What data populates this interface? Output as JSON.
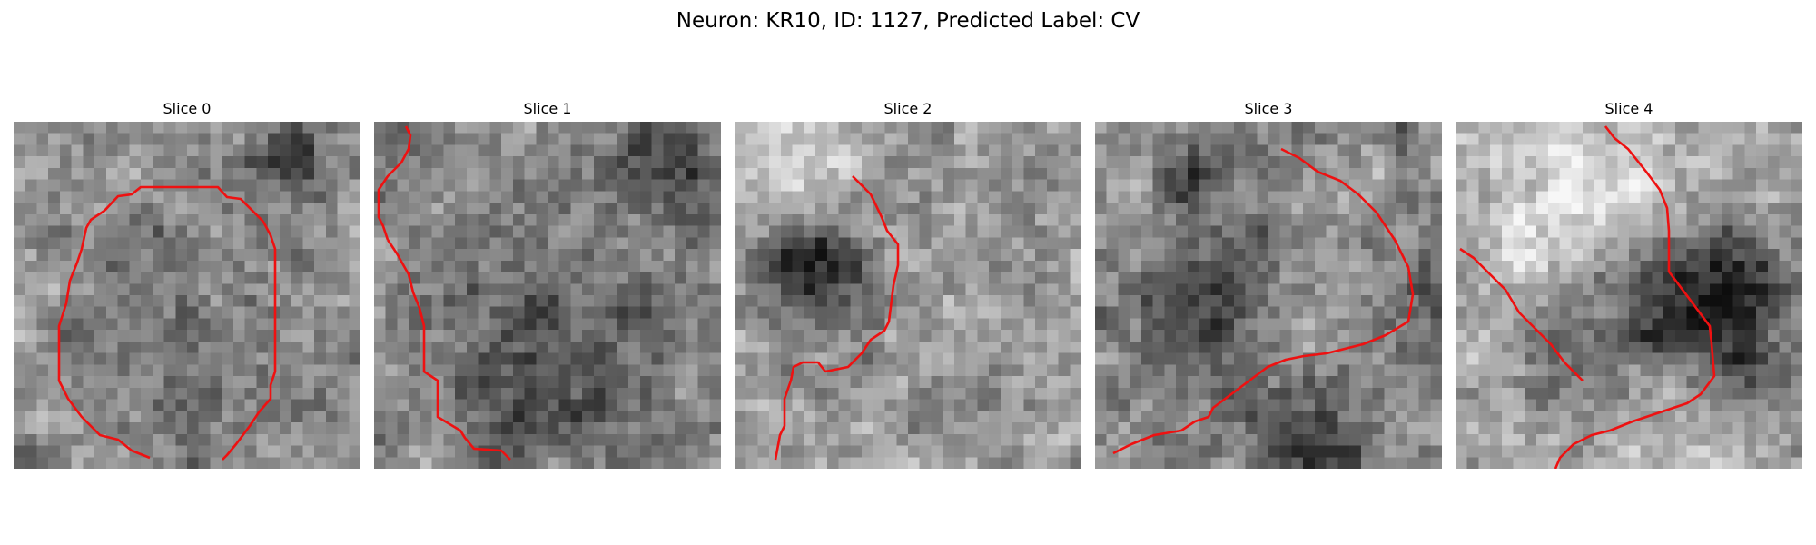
{
  "figure": {
    "title": "Neuron: KR10, ID: 1127, Predicted Label: CV"
  },
  "slices": [
    {
      "label": "Slice 0"
    },
    {
      "label": "Slice 1"
    },
    {
      "label": "Slice 2"
    },
    {
      "label": "Slice 3"
    },
    {
      "label": "Slice 4"
    }
  ],
  "colors": {
    "contour": "#ee1111",
    "background": "#ffffff"
  }
}
